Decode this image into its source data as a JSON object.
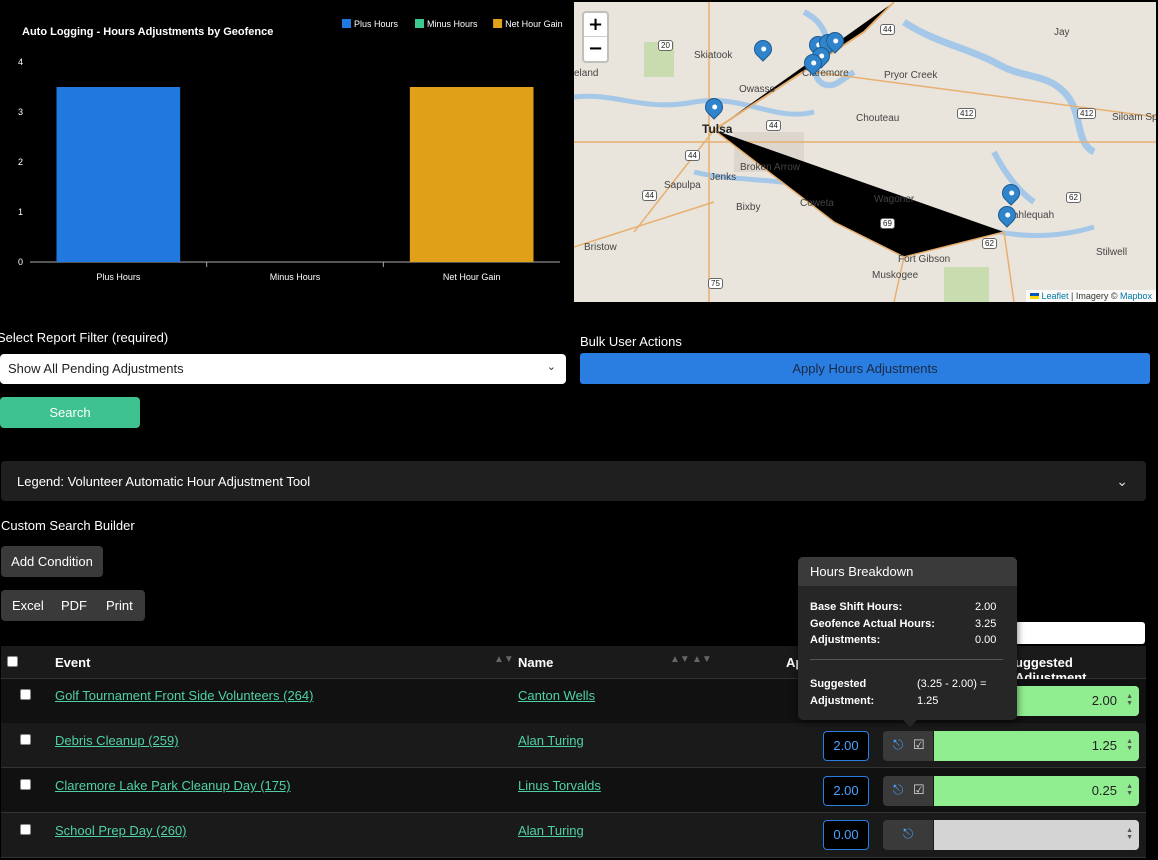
{
  "chart_data": {
    "type": "bar",
    "title": "Auto Logging - Hours Adjustments by Geofence",
    "categories": [
      "Plus Hours",
      "Minus Hours",
      "Net Hour Gain"
    ],
    "values": [
      3.5,
      0,
      3.5
    ],
    "colors": [
      "#2179e0",
      "#3cc98f",
      "#e0a018"
    ],
    "legend": [
      "Plus Hours",
      "Minus Hours",
      "Net Hour Gain"
    ],
    "legend_position": "top-right",
    "ylim": [
      0,
      4
    ],
    "yticks": [
      "0",
      "1",
      "2",
      "3",
      "4"
    ],
    "grid": false
  },
  "map": {
    "zoom_in": "+",
    "zoom_out": "−",
    "attribution_leaflet": "Leaflet",
    "attribution_mid": " | Imagery © ",
    "attribution_mapbox": "Mapbox",
    "places": [
      "Skiatook",
      "Claremore",
      "Pryor Creek",
      "Jay",
      "Owasso",
      "Tulsa",
      "Chouteau",
      "Siloam Springs",
      "Broken Arrow",
      "Jenks",
      "Sapulpa",
      "Bixby",
      "Coweta",
      "Wagoner",
      "Tahlequah",
      "Bristow",
      "Fort Gibson",
      "Muskogee",
      "Stilwell",
      "eland"
    ],
    "shields": [
      "20",
      "44",
      "44",
      "44",
      "412",
      "412",
      "44",
      "69",
      "62",
      "62",
      "75"
    ]
  },
  "filter": {
    "label": "Select Report Filter (required)",
    "selected": "Show All Pending Adjustments",
    "search_button": "Search"
  },
  "bulk": {
    "label": "Bulk User Actions",
    "apply_button": "Apply Hours Adjustments"
  },
  "legend_panel": {
    "title": "Legend: Volunteer Automatic Hour Adjustment Tool"
  },
  "search_builder": {
    "title": "Custom Search Builder",
    "add_condition": "Add Condition"
  },
  "export": {
    "excel": "Excel",
    "pdf": "PDF",
    "print": "Print"
  },
  "table": {
    "headers": {
      "event": "Event",
      "name": "Name",
      "approved": "Ap",
      "suggested": "uggested Adjustment"
    },
    "rows": [
      {
        "event": "Golf Tournament Front Side Volunteers (264)",
        "name": "Canton Wells",
        "hours": "",
        "adjust": "2.00"
      },
      {
        "event": "Debris Cleanup (259)",
        "name": "Alan Turing",
        "hours": "2.00",
        "adjust": "1.25"
      },
      {
        "event": "Claremore Lake Park Cleanup Day (175)",
        "name": "Linus Torvalds",
        "hours": "2.00",
        "adjust": "0.25"
      },
      {
        "event": "School Prep Day (260)",
        "name": "Alan Turing",
        "hours": "0.00",
        "adjust": ""
      }
    ]
  },
  "tooltip": {
    "title": "Hours Breakdown",
    "base_label": "Base Shift Hours:",
    "base_value": "2.00",
    "geo_label": "Geofence Actual Hours:",
    "geo_value": "3.25",
    "adj_label": "Adjustments:",
    "adj_value": "0.00",
    "suggested_label_1": "Suggested",
    "suggested_label_2": "Adjustment:",
    "formula": "(3.25 - 2.00) =",
    "result": "1.25"
  }
}
